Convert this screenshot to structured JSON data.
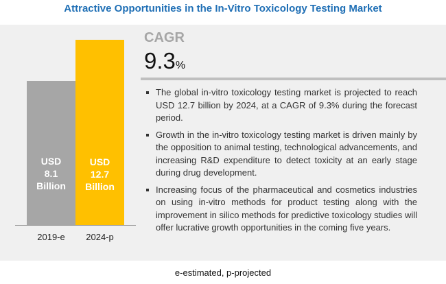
{
  "header": {
    "title": "Attractive Opportunities in the In-Vitro Toxicology Testing Market"
  },
  "chart_data": {
    "type": "bar",
    "categories": [
      "2019-e",
      "2024-p"
    ],
    "values": [
      8.1,
      12.7
    ],
    "data_labels": [
      [
        "USD",
        "8.1",
        "Billion"
      ],
      [
        "USD",
        "12.7",
        "Billion"
      ]
    ],
    "colors": [
      "#a6a6a6",
      "#ffc000"
    ],
    "unit": "USD Billion",
    "title": "",
    "xlabel": "",
    "ylabel": ""
  },
  "cagr": {
    "label": "CAGR",
    "value": "9.3",
    "unit": "%"
  },
  "bullets": [
    "The global in-vitro toxicology testing market is projected to reach USD 12.7 billion by 2024, at a CAGR of 9.3% during the forecast period.",
    "Growth in the in-vitro toxicology testing market is driven mainly by the opposition to animal testing, technological advancements, and increasing R&D expenditure to detect toxicity at an early stage during drug development.",
    "Increasing focus of the pharmaceutical and cosmetics industries on using in-vitro methods for product testing along with the improvement in silico methods for predictive toxicology studies will offer lucrative growth opportunities in the coming five years."
  ],
  "footer": {
    "note": "e-estimated, p-projected"
  }
}
